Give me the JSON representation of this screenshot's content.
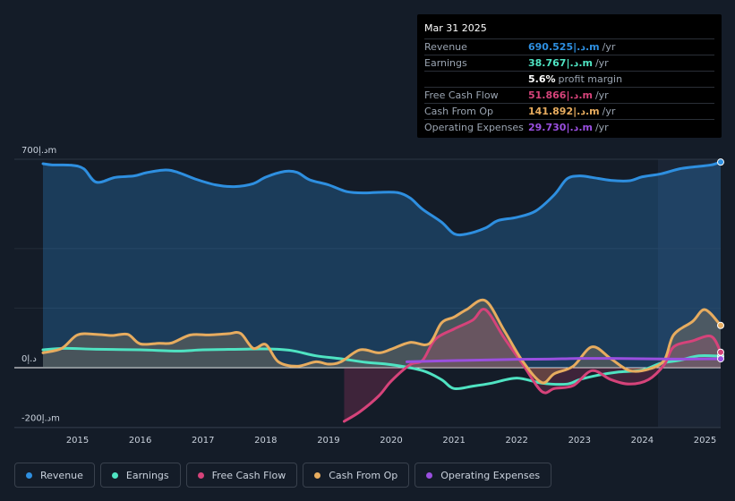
{
  "chart_data": {
    "type": "line",
    "y_unit_label": "د.إm",
    "ylim": [
      -200,
      700
    ],
    "y_tick_labels": [
      "700د.إm",
      "0د.إ",
      "-200د.إm"
    ],
    "y_ticks": [
      700,
      0,
      -200
    ],
    "xlim": [
      2014.45,
      2025.25
    ],
    "x_ticks": [
      2015,
      2016,
      2017,
      2018,
      2019,
      2020,
      2021,
      2022,
      2023,
      2024,
      2025
    ],
    "x_tick_labels": [
      "2015",
      "2016",
      "2017",
      "2018",
      "2019",
      "2020",
      "2021",
      "2022",
      "2023",
      "2024",
      "2025"
    ],
    "forecast_start": 2024.25,
    "series": [
      {
        "name": "Revenue",
        "key": "revenue",
        "color": "#2e8fe0",
        "fill": true,
        "points": [
          [
            2014.45,
            685
          ],
          [
            2014.6,
            681
          ],
          [
            2014.9,
            680
          ],
          [
            2015.1,
            668
          ],
          [
            2015.3,
            623
          ],
          [
            2015.6,
            639
          ],
          [
            2015.9,
            644
          ],
          [
            2016.1,
            655
          ],
          [
            2016.4,
            664
          ],
          [
            2016.6,
            656
          ],
          [
            2016.9,
            632
          ],
          [
            2017.2,
            614
          ],
          [
            2017.5,
            608
          ],
          [
            2017.8,
            618
          ],
          [
            2018.0,
            640
          ],
          [
            2018.3,
            659
          ],
          [
            2018.5,
            656
          ],
          [
            2018.7,
            631
          ],
          [
            2019.0,
            614
          ],
          [
            2019.3,
            591
          ],
          [
            2019.6,
            587
          ],
          [
            2019.8,
            589
          ],
          [
            2020.1,
            588
          ],
          [
            2020.3,
            570
          ],
          [
            2020.5,
            532
          ],
          [
            2020.8,
            489
          ],
          [
            2021.0,
            450
          ],
          [
            2021.2,
            449
          ],
          [
            2021.5,
            469
          ],
          [
            2021.7,
            494
          ],
          [
            2022.0,
            505
          ],
          [
            2022.3,
            526
          ],
          [
            2022.6,
            581
          ],
          [
            2022.8,
            634
          ],
          [
            2023.0,
            644
          ],
          [
            2023.2,
            639
          ],
          [
            2023.5,
            629
          ],
          [
            2023.8,
            628
          ],
          [
            2024.0,
            641
          ],
          [
            2024.3,
            651
          ],
          [
            2024.6,
            668
          ],
          [
            2024.9,
            676
          ],
          [
            2025.1,
            681
          ],
          [
            2025.25,
            690.525
          ]
        ]
      },
      {
        "name": "Earnings",
        "key": "earnings",
        "color": "#4fe3c2",
        "fill": false,
        "points": [
          [
            2014.45,
            60
          ],
          [
            2014.8,
            65
          ],
          [
            2015.3,
            62
          ],
          [
            2016.0,
            60
          ],
          [
            2016.6,
            56
          ],
          [
            2017.0,
            60
          ],
          [
            2017.6,
            62
          ],
          [
            2018.0,
            63
          ],
          [
            2018.4,
            58
          ],
          [
            2018.8,
            40
          ],
          [
            2019.2,
            30
          ],
          [
            2019.6,
            18
          ],
          [
            2020.0,
            10
          ],
          [
            2020.5,
            -10
          ],
          [
            2020.8,
            -40
          ],
          [
            2021.0,
            -70
          ],
          [
            2021.3,
            -62
          ],
          [
            2021.6,
            -52
          ],
          [
            2022.0,
            -35
          ],
          [
            2022.4,
            -52
          ],
          [
            2022.8,
            -55
          ],
          [
            2023.0,
            -40
          ],
          [
            2023.3,
            -25
          ],
          [
            2023.6,
            -15
          ],
          [
            2024.0,
            -8
          ],
          [
            2024.3,
            15
          ],
          [
            2024.6,
            25
          ],
          [
            2024.9,
            40
          ],
          [
            2025.25,
            38.767
          ]
        ]
      },
      {
        "name": "Free Cash Flow",
        "key": "fcf",
        "color": "#d6437a",
        "fill": true,
        "points": [
          [
            2019.25,
            -180
          ],
          [
            2019.5,
            -148
          ],
          [
            2019.8,
            -95
          ],
          [
            2020.0,
            -45
          ],
          [
            2020.3,
            10
          ],
          [
            2020.5,
            25
          ],
          [
            2020.7,
            95
          ],
          [
            2021.0,
            130
          ],
          [
            2021.3,
            160
          ],
          [
            2021.5,
            195
          ],
          [
            2021.8,
            100
          ],
          [
            2022.1,
            10
          ],
          [
            2022.4,
            -80
          ],
          [
            2022.6,
            -70
          ],
          [
            2022.9,
            -60
          ],
          [
            2023.2,
            -10
          ],
          [
            2023.5,
            -40
          ],
          [
            2023.8,
            -55
          ],
          [
            2024.1,
            -40
          ],
          [
            2024.35,
            10
          ],
          [
            2024.5,
            70
          ],
          [
            2024.8,
            90
          ],
          [
            2025.1,
            105
          ],
          [
            2025.25,
            51.866
          ]
        ]
      },
      {
        "name": "Cash From Op",
        "key": "cfo",
        "color": "#e7ac5f",
        "fill": true,
        "points": [
          [
            2014.45,
            50
          ],
          [
            2014.75,
            65
          ],
          [
            2015.0,
            110
          ],
          [
            2015.3,
            112
          ],
          [
            2015.55,
            108
          ],
          [
            2015.8,
            112
          ],
          [
            2016.0,
            80
          ],
          [
            2016.3,
            82
          ],
          [
            2016.5,
            83
          ],
          [
            2016.8,
            110
          ],
          [
            2017.1,
            110
          ],
          [
            2017.4,
            114
          ],
          [
            2017.6,
            115
          ],
          [
            2017.8,
            65
          ],
          [
            2018.0,
            78
          ],
          [
            2018.2,
            20
          ],
          [
            2018.5,
            5
          ],
          [
            2018.8,
            20
          ],
          [
            2019.0,
            12
          ],
          [
            2019.2,
            20
          ],
          [
            2019.5,
            60
          ],
          [
            2019.8,
            50
          ],
          [
            2020.0,
            62
          ],
          [
            2020.3,
            85
          ],
          [
            2020.6,
            80
          ],
          [
            2020.8,
            150
          ],
          [
            2021.0,
            170
          ],
          [
            2021.2,
            195
          ],
          [
            2021.5,
            225
          ],
          [
            2021.8,
            125
          ],
          [
            2022.1,
            20
          ],
          [
            2022.4,
            -50
          ],
          [
            2022.6,
            -20
          ],
          [
            2022.9,
            5
          ],
          [
            2023.2,
            70
          ],
          [
            2023.5,
            30
          ],
          [
            2023.8,
            -10
          ],
          [
            2024.1,
            -5
          ],
          [
            2024.35,
            25
          ],
          [
            2024.5,
            110
          ],
          [
            2024.8,
            155
          ],
          [
            2025.0,
            195
          ],
          [
            2025.25,
            141.892
          ]
        ]
      },
      {
        "name": "Operating Expenses",
        "key": "opex",
        "color": "#9a4fe0",
        "fill": false,
        "points": [
          [
            2020.25,
            20
          ],
          [
            2020.8,
            23
          ],
          [
            2021.5,
            26
          ],
          [
            2022.0,
            28
          ],
          [
            2022.5,
            29
          ],
          [
            2023.0,
            31
          ],
          [
            2023.5,
            31
          ],
          [
            2024.0,
            30
          ],
          [
            2024.5,
            29
          ],
          [
            2025.0,
            29.5
          ],
          [
            2025.25,
            29.73
          ]
        ]
      }
    ]
  },
  "tooltip": {
    "date": "Mar 31 2025",
    "rows": [
      {
        "label": "Revenue",
        "value": "690.525|.د.m",
        "unit": "/yr",
        "color": "#2e8fe0"
      },
      {
        "label": "Earnings",
        "value": "38.767|.د.m",
        "unit": "/yr",
        "color": "#4fe3c2"
      },
      {
        "label": "",
        "value": "5.6%",
        "unit": "profit margin",
        "color": "#ffffff"
      },
      {
        "label": "Free Cash Flow",
        "value": "51.866|.د.m",
        "unit": "/yr",
        "color": "#d6437a"
      },
      {
        "label": "Cash From Op",
        "value": "141.892|.د.m",
        "unit": "/yr",
        "color": "#e7ac5f"
      },
      {
        "label": "Operating Expenses",
        "value": "29.730|.د.m",
        "unit": "/yr",
        "color": "#9a4fe0"
      }
    ]
  },
  "legend": [
    {
      "label": "Revenue",
      "color": "#2e8fe0"
    },
    {
      "label": "Earnings",
      "color": "#4fe3c2"
    },
    {
      "label": "Free Cash Flow",
      "color": "#d6437a"
    },
    {
      "label": "Cash From Op",
      "color": "#e7ac5f"
    },
    {
      "label": "Operating Expenses",
      "color": "#9a4fe0"
    }
  ]
}
